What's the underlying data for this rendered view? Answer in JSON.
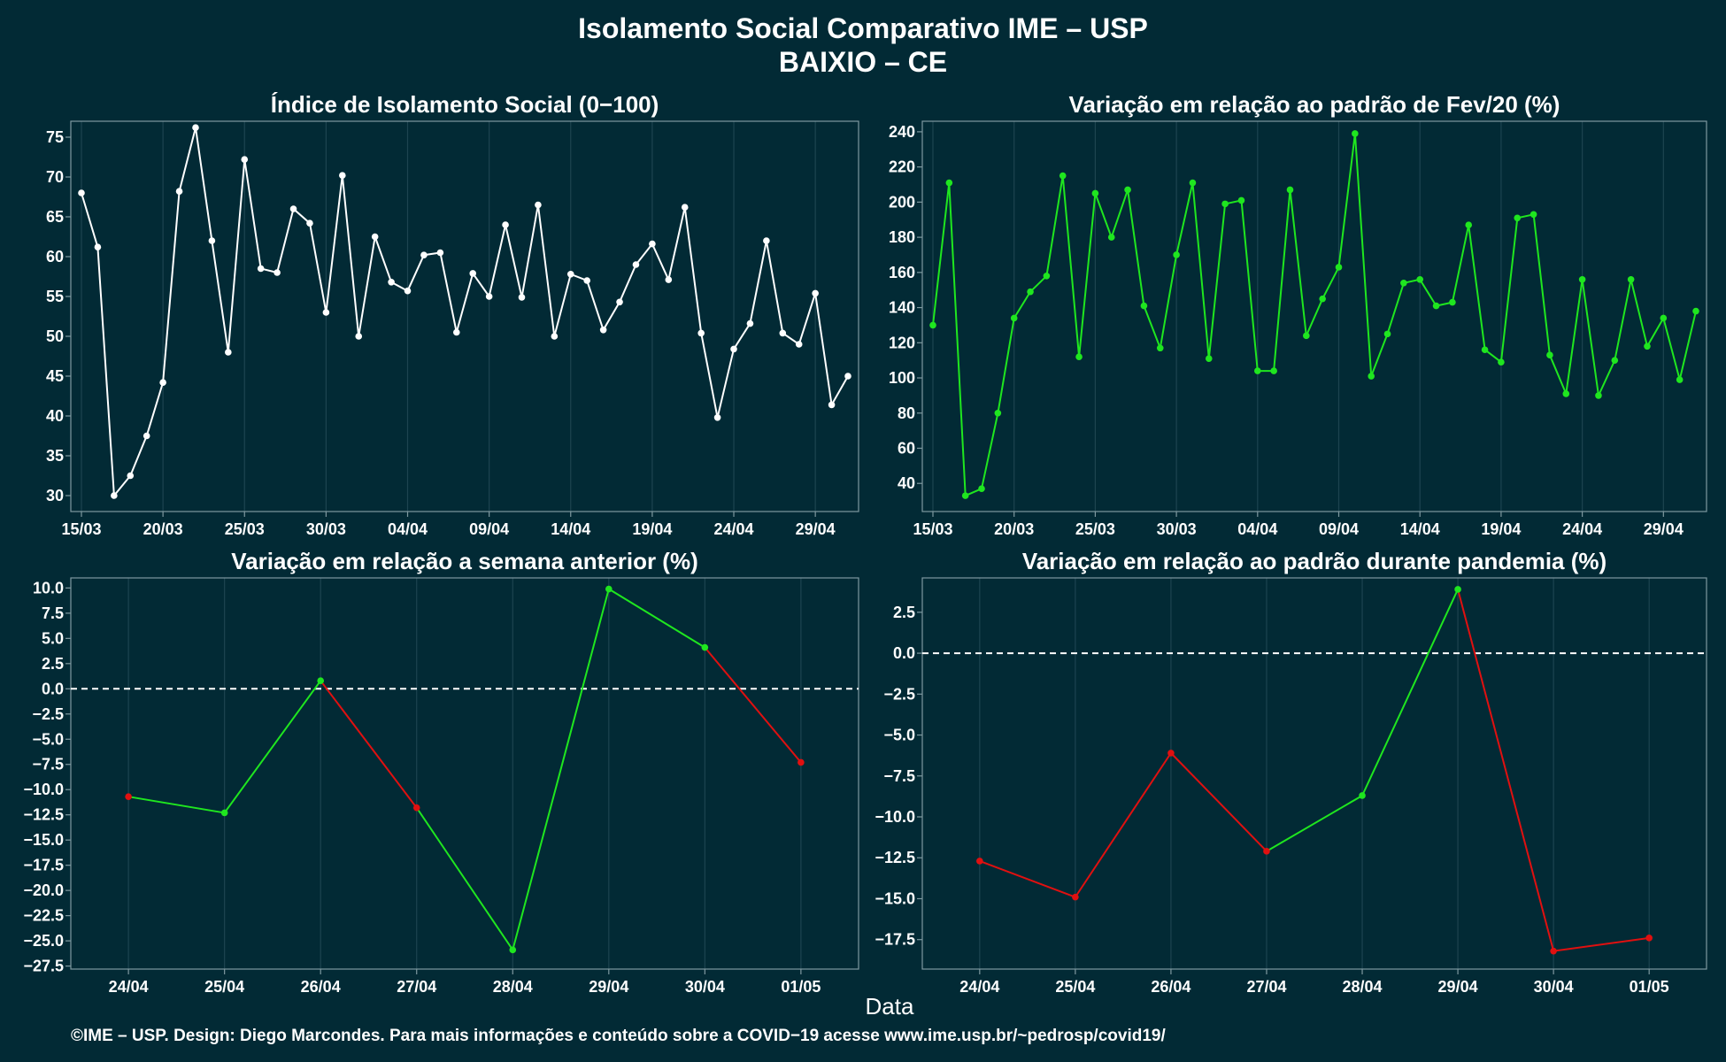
{
  "title": "Isolamento Social Comparativo IME – USP",
  "subtitle": "BAIXIO – CE",
  "xlabel": "Data",
  "footer": "©IME – USP. Design: Diego Marcondes. Para mais informações e conteúdo sobre a COVID−19 acesse www.ime.usp.br/~pedrosp/covid19/",
  "colors": {
    "background": "#022a35",
    "white_line": "#ffffff",
    "green_line": "#1fe61f",
    "red_line": "#e01010",
    "grid": "#1d4450",
    "border": "#7f99a0"
  },
  "chart_data": [
    {
      "type": "line",
      "title": "Índice de Isolamento Social (0−100)",
      "ylim": [
        28,
        77
      ],
      "yticks": [
        "30",
        "35",
        "40",
        "45",
        "50",
        "55",
        "60",
        "65",
        "70",
        "75"
      ],
      "xticks": [
        "15/03",
        "20/03",
        "25/03",
        "30/03",
        "04/04",
        "09/04",
        "14/04",
        "19/04",
        "24/04",
        "29/04"
      ],
      "x": [
        "15/03",
        "16/03",
        "17/03",
        "18/03",
        "19/03",
        "20/03",
        "21/03",
        "22/03",
        "23/03",
        "24/03",
        "25/03",
        "26/03",
        "27/03",
        "28/03",
        "29/03",
        "30/03",
        "31/03",
        "01/04",
        "02/04",
        "03/04",
        "04/04",
        "05/04",
        "06/04",
        "07/04",
        "08/04",
        "09/04",
        "10/04",
        "11/04",
        "12/04",
        "13/04",
        "14/04",
        "15/04",
        "16/04",
        "17/04",
        "18/04",
        "19/04",
        "20/04",
        "21/04",
        "22/04",
        "23/04",
        "24/04",
        "25/04",
        "26/04",
        "27/04",
        "28/04",
        "29/04",
        "30/04",
        "01/05"
      ],
      "series": [
        {
          "color": "#ffffff",
          "values": [
            68,
            61.2,
            30,
            32.5,
            37.5,
            44.2,
            68.2,
            76.2,
            62,
            48,
            72.2,
            58.5,
            58,
            66,
            64.2,
            53,
            70.2,
            50,
            62.5,
            56.8,
            55.7,
            60.2,
            60.5,
            50.5,
            57.9,
            55,
            64,
            54.9,
            66.5,
            50,
            57.8,
            57,
            50.8,
            54.3,
            59,
            61.6,
            57.1,
            66.2,
            50.4,
            39.8,
            48.4,
            51.6,
            62,
            50.4,
            49,
            55.4,
            41.4,
            45
          ]
        }
      ]
    },
    {
      "type": "line",
      "title": "Variação em relação ao padrão de Fev/20 (%)",
      "ylim": [
        24,
        246
      ],
      "yticks": [
        "40",
        "60",
        "80",
        "100",
        "120",
        "140",
        "160",
        "180",
        "200",
        "220",
        "240"
      ],
      "xticks": [
        "15/03",
        "20/03",
        "25/03",
        "30/03",
        "04/04",
        "09/04",
        "14/04",
        "19/04",
        "24/04",
        "29/04"
      ],
      "x": [
        "15/03",
        "16/03",
        "17/03",
        "18/03",
        "19/03",
        "20/03",
        "21/03",
        "22/03",
        "23/03",
        "24/03",
        "25/03",
        "26/03",
        "27/03",
        "28/03",
        "29/03",
        "30/03",
        "31/03",
        "01/04",
        "02/04",
        "03/04",
        "04/04",
        "05/04",
        "06/04",
        "07/04",
        "08/04",
        "09/04",
        "10/04",
        "11/04",
        "12/04",
        "13/04",
        "14/04",
        "15/04",
        "16/04",
        "17/04",
        "18/04",
        "19/04",
        "20/04",
        "21/04",
        "22/04",
        "23/04",
        "24/04",
        "25/04",
        "26/04",
        "27/04",
        "28/04",
        "29/04",
        "30/04",
        "01/05"
      ],
      "series": [
        {
          "color": "#1fe61f",
          "values": [
            130,
            211,
            33,
            37,
            80,
            134,
            149,
            158,
            215,
            112,
            205,
            180,
            207,
            141,
            117,
            170,
            211,
            111,
            199,
            201,
            104,
            104,
            207,
            124,
            145,
            163,
            239,
            101,
            125,
            154,
            156,
            141,
            143,
            187,
            116,
            109,
            191,
            193,
            113,
            91,
            156,
            90,
            110,
            156,
            118,
            134,
            99,
            138
          ]
        }
      ]
    },
    {
      "type": "line",
      "title": "Variação em relação a semana anterior (%)",
      "ylim": [
        -27.8,
        11
      ],
      "yticks": [
        "10.0",
        "7.5",
        "5.0",
        "2.5",
        "0.0",
        "−2.5",
        "−5.0",
        "−7.5",
        "−10.0",
        "−12.5",
        "−15.0",
        "−17.5",
        "−20.0",
        "−22.5",
        "−25.0",
        "−27.5"
      ],
      "xticks": [
        "24/04",
        "25/04",
        "26/04",
        "27/04",
        "28/04",
        "29/04",
        "30/04",
        "01/05"
      ],
      "x": [
        "24/04",
        "25/04",
        "26/04",
        "27/04",
        "28/04",
        "29/04",
        "30/04",
        "01/05"
      ],
      "reference_line": 0,
      "series": [
        {
          "values": [
            -10.7,
            -12.3,
            0.8,
            -11.8,
            -25.9,
            9.9,
            4.1,
            -7.3
          ],
          "point_colors": [
            "#e01010",
            "#1fe61f",
            "#1fe61f",
            "#e01010",
            "#1fe61f",
            "#1fe61f",
            "#1fe61f",
            "#e01010"
          ]
        }
      ]
    },
    {
      "type": "line",
      "title": "Variação em relação ao padrão durante pandemia (%)",
      "ylim": [
        -19.3,
        4.6
      ],
      "yticks": [
        "2.5",
        "0.0",
        "−2.5",
        "−5.0",
        "−7.5",
        "−10.0",
        "−12.5",
        "−15.0",
        "−17.5"
      ],
      "xticks": [
        "24/04",
        "25/04",
        "26/04",
        "27/04",
        "28/04",
        "29/04",
        "30/04",
        "01/05"
      ],
      "x": [
        "24/04",
        "25/04",
        "26/04",
        "27/04",
        "28/04",
        "29/04",
        "30/04",
        "01/05"
      ],
      "reference_line": 0,
      "series": [
        {
          "values": [
            -12.7,
            -14.9,
            -6.1,
            -12.1,
            -8.7,
            3.9,
            -18.2,
            -17.4
          ],
          "point_colors": [
            "#e01010",
            "#e01010",
            "#e01010",
            "#e01010",
            "#1fe61f",
            "#1fe61f",
            "#e01010",
            "#e01010"
          ]
        }
      ]
    }
  ]
}
